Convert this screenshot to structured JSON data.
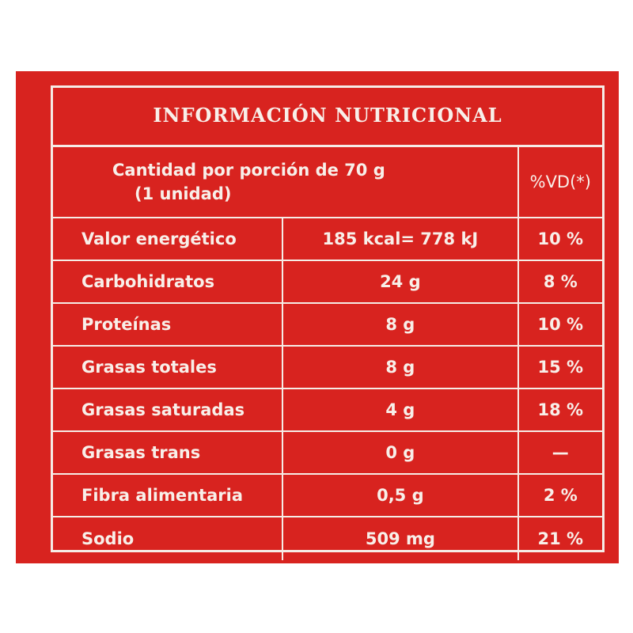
{
  "label": {
    "title": "INFORMACIÓN NUTRICIONAL",
    "portion_line1": "Cantidad por porción de 70 g",
    "portion_line2": "(1 unidad)",
    "vd_header": "%VD(*)"
  },
  "colors": {
    "background": "#d8231f",
    "text_and_lines": "#f6ece6"
  },
  "rows": [
    {
      "name": "Valor energético",
      "amount": "185 kcal= 778 kJ",
      "vd": "10 %"
    },
    {
      "name": "Carbohidratos",
      "amount": "24 g",
      "vd": "8 %"
    },
    {
      "name": "Proteínas",
      "amount": "8 g",
      "vd": "10 %"
    },
    {
      "name": "Grasas totales",
      "amount": "8 g",
      "vd": "15 %"
    },
    {
      "name": "Grasas saturadas",
      "amount": "4 g",
      "vd": "18 %"
    },
    {
      "name": "Grasas trans",
      "amount": "0 g",
      "vd": "—"
    },
    {
      "name": "Fibra alimentaria",
      "amount": "0,5 g",
      "vd": "2 %"
    },
    {
      "name": "Sodio",
      "amount": "509 mg",
      "vd": "21 %"
    }
  ]
}
